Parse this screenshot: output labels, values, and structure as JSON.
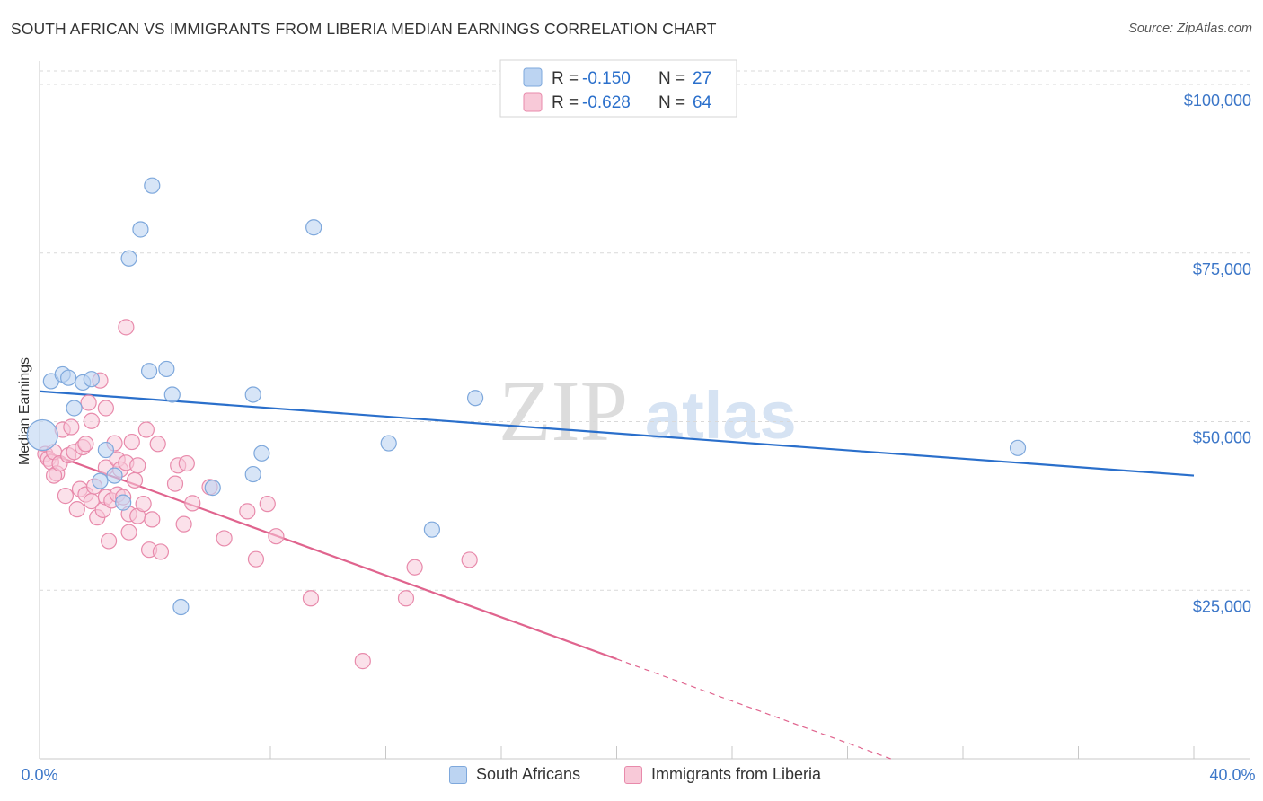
{
  "title": "SOUTH AFRICAN VS IMMIGRANTS FROM LIBERIA MEDIAN EARNINGS CORRELATION CHART",
  "source": "Source: ZipAtlas.com",
  "watermark": {
    "zip": "ZIP",
    "atlas": "atlas"
  },
  "legend": {
    "rows": [
      {
        "r_label": "R =",
        "r_value": "-0.150",
        "n_label": "N =",
        "n_value": "27"
      },
      {
        "r_label": "R =",
        "r_value": "-0.628",
        "n_label": "N =",
        "n_value": "64"
      }
    ]
  },
  "bottom_legend": {
    "south_africans": "South Africans",
    "liberia": "Immigrants from Liberia"
  },
  "colors": {
    "blue_fill": "#bcd4f2",
    "blue_stroke": "#7ea8dc",
    "blue_line": "#2a6fcb",
    "pink_fill": "#f8c9d8",
    "pink_stroke": "#e88aab",
    "pink_line": "#e0648e",
    "tick_text": "#3b76c8",
    "grid": "#d9d9d9"
  },
  "chart_data": {
    "type": "scatter",
    "title": "SOUTH AFRICAN VS IMMIGRANTS FROM LIBERIA MEDIAN EARNINGS CORRELATION CHART",
    "xlabel": "",
    "ylabel": "Median Earnings",
    "xlim": [
      0,
      40
    ],
    "ylim": [
      0,
      102000
    ],
    "x_tick_labels": [
      "0.0%",
      "40.0%"
    ],
    "y_ticks": [
      25000,
      50000,
      75000,
      100000
    ],
    "y_tick_labels": [
      "$25,000",
      "$50,000",
      "$75,000",
      "$100,000"
    ],
    "grid": true,
    "legend_position": "top-center",
    "series": [
      {
        "name": "South Africans",
        "r": -0.15,
        "n": 27,
        "trend": {
          "x0": 0,
          "y0": 54500,
          "x1": 40,
          "y1": 42000,
          "dashed_from": null
        },
        "points": [
          [
            0.1,
            48000
          ],
          [
            0.4,
            56000
          ],
          [
            0.8,
            57000
          ],
          [
            1.0,
            56500
          ],
          [
            1.5,
            55800
          ],
          [
            1.8,
            56300
          ],
          [
            1.2,
            52000
          ],
          [
            2.3,
            45800
          ],
          [
            2.1,
            41200
          ],
          [
            2.6,
            42000
          ],
          [
            2.9,
            38000
          ],
          [
            3.9,
            85000
          ],
          [
            3.5,
            78500
          ],
          [
            3.1,
            74200
          ],
          [
            3.8,
            57500
          ],
          [
            4.4,
            57800
          ],
          [
            4.6,
            54000
          ],
          [
            4.9,
            22500
          ],
          [
            6.0,
            40200
          ],
          [
            7.4,
            54000
          ],
          [
            7.4,
            42200
          ],
          [
            7.7,
            45300
          ],
          [
            9.5,
            78800
          ],
          [
            12.1,
            46800
          ],
          [
            13.6,
            34000
          ],
          [
            15.1,
            53500
          ],
          [
            33.9,
            46100
          ]
        ]
      },
      {
        "name": "Immigrants from Liberia",
        "r": -0.628,
        "n": 64,
        "trend": {
          "x0": 0,
          "y0": 45800,
          "x1": 20,
          "y1": 14800,
          "dashed_to_x": 29.5,
          "dashed_to_y": 0
        },
        "points": [
          [
            0.2,
            45200
          ],
          [
            0.3,
            44500
          ],
          [
            0.4,
            44000
          ],
          [
            0.5,
            45500
          ],
          [
            0.6,
            42300
          ],
          [
            0.5,
            42000
          ],
          [
            0.7,
            43800
          ],
          [
            0.8,
            48800
          ],
          [
            0.9,
            39000
          ],
          [
            1.0,
            45000
          ],
          [
            1.1,
            49200
          ],
          [
            1.2,
            45500
          ],
          [
            1.3,
            37000
          ],
          [
            1.4,
            40000
          ],
          [
            1.5,
            46200
          ],
          [
            1.6,
            39200
          ],
          [
            1.6,
            46700
          ],
          [
            1.7,
            52800
          ],
          [
            1.8,
            38200
          ],
          [
            1.8,
            50100
          ],
          [
            1.9,
            40400
          ],
          [
            2.0,
            35800
          ],
          [
            2.1,
            56100
          ],
          [
            2.2,
            36900
          ],
          [
            2.3,
            43200
          ],
          [
            2.3,
            38800
          ],
          [
            2.3,
            52000
          ],
          [
            2.4,
            32300
          ],
          [
            2.5,
            38300
          ],
          [
            2.6,
            46800
          ],
          [
            2.7,
            39200
          ],
          [
            2.7,
            44400
          ],
          [
            2.8,
            42900
          ],
          [
            2.9,
            38800
          ],
          [
            3.0,
            43900
          ],
          [
            3.0,
            64000
          ],
          [
            3.1,
            36300
          ],
          [
            3.1,
            33600
          ],
          [
            3.2,
            47000
          ],
          [
            3.3,
            41300
          ],
          [
            3.4,
            36000
          ],
          [
            3.4,
            43500
          ],
          [
            3.6,
            37800
          ],
          [
            3.7,
            48800
          ],
          [
            3.8,
            31000
          ],
          [
            3.9,
            35500
          ],
          [
            4.1,
            46700
          ],
          [
            4.2,
            30700
          ],
          [
            4.7,
            40800
          ],
          [
            4.8,
            43500
          ],
          [
            5.0,
            34800
          ],
          [
            5.1,
            43800
          ],
          [
            5.3,
            37900
          ],
          [
            5.9,
            40300
          ],
          [
            6.4,
            32700
          ],
          [
            7.2,
            36700
          ],
          [
            7.5,
            29600
          ],
          [
            7.9,
            37800
          ],
          [
            8.2,
            33000
          ],
          [
            9.4,
            23800
          ],
          [
            11.2,
            14500
          ],
          [
            13.0,
            28400
          ],
          [
            14.9,
            29500
          ],
          [
            12.7,
            23800
          ]
        ]
      }
    ]
  }
}
